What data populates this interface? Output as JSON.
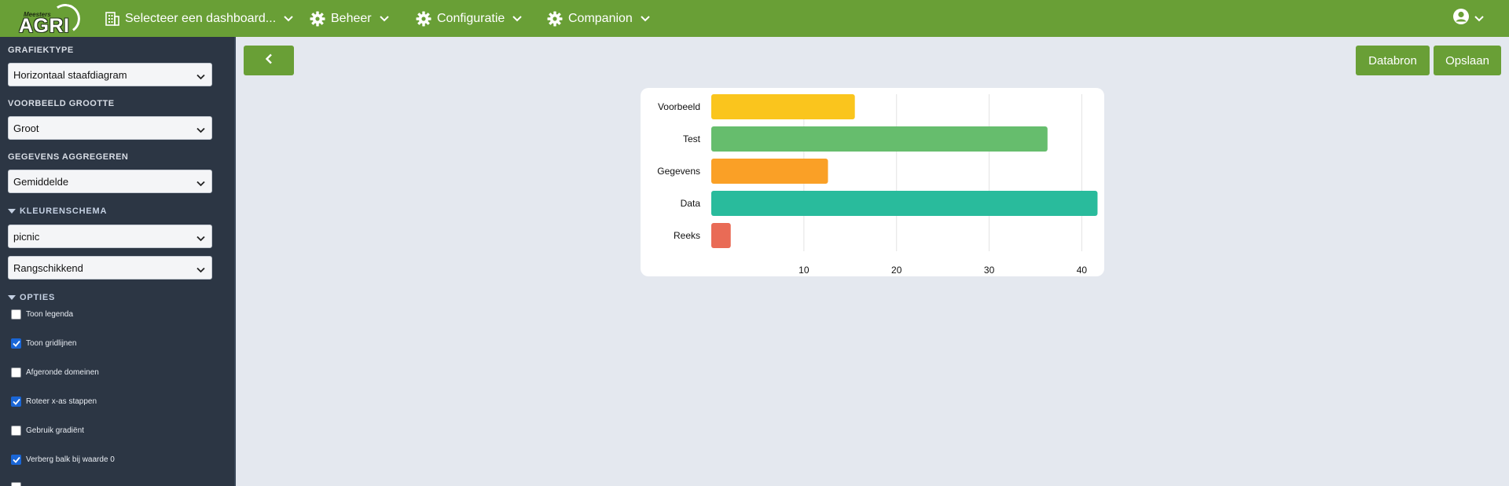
{
  "topbar": {
    "logo_small": "Meesters",
    "logo_main": "AGRI",
    "nav": [
      {
        "label": "Selecteer een dashboard..."
      },
      {
        "label": "Beheer"
      },
      {
        "label": "Configuratie"
      },
      {
        "label": "Companion"
      }
    ]
  },
  "sidebar": {
    "chart_type_label": "GRAFIEKTYPE",
    "chart_type_value": "Horizontaal staafdiagram",
    "preview_size_label": "VOORBEELD GROOTTE",
    "preview_size_value": "Groot",
    "aggregate_label": "GEGEVENS AGGREGEREN",
    "aggregate_value": "Gemiddelde",
    "color_scheme_label": "KLEURENSCHEMA",
    "color_scheme_value": "picnic",
    "color_order_value": "Rangschikkend",
    "options_label": "OPTIES",
    "options": [
      {
        "label": "Toon legenda",
        "checked": false
      },
      {
        "label": "Toon gridlijnen",
        "checked": true
      },
      {
        "label": "Afgeronde domeinen",
        "checked": false
      },
      {
        "label": "Roteer x-as stappen",
        "checked": true
      },
      {
        "label": "Gebruik gradiënt",
        "checked": false
      },
      {
        "label": "Verberg balk bij waarde 0",
        "checked": true
      }
    ]
  },
  "toolbar": {
    "databron_label": "Databron",
    "opslaan_label": "Opslaan"
  },
  "colors": {
    "brand_green": "#699f36",
    "sidebar_bg": "#2c3644",
    "main_bg": "#e4e8ef"
  },
  "chart_data": {
    "type": "bar",
    "orientation": "horizontal",
    "categories": [
      "Voorbeeld",
      "Test",
      "Gegevens",
      "Data",
      "Reeks"
    ],
    "values": [
      15.5,
      36.3,
      12.6,
      41.7,
      2.1
    ],
    "colors": [
      "#fac51d",
      "#66bd6d",
      "#faa026",
      "#29bb9c",
      "#e96b56"
    ],
    "xticks": [
      10,
      20,
      30,
      40
    ],
    "xlim": [
      0,
      42
    ],
    "grid": true,
    "legend": false,
    "title": "",
    "xlabel": "",
    "ylabel": ""
  }
}
